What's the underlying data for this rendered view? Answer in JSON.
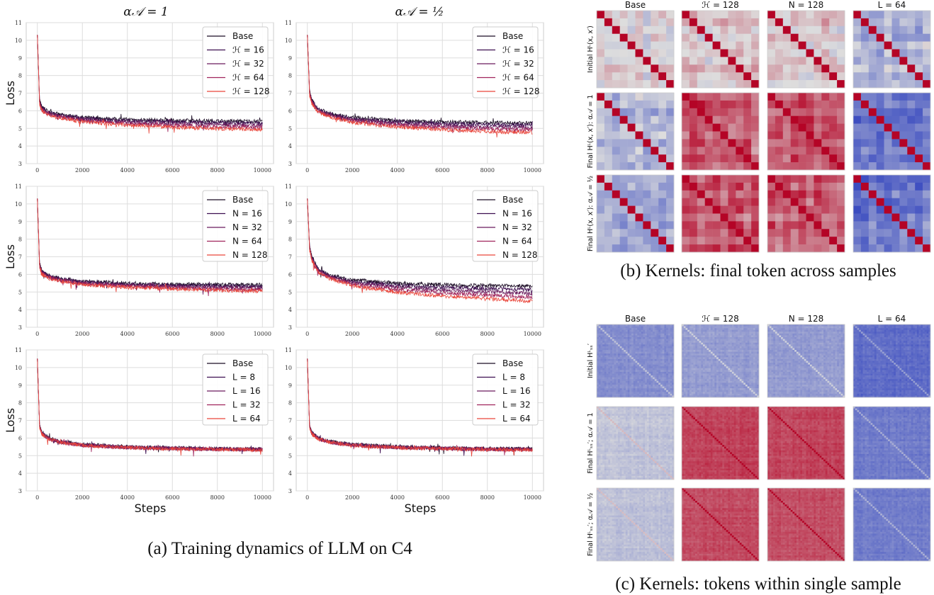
{
  "figure_a": {
    "caption": "(a)  Training dynamics of LLM on C4",
    "column_titles": [
      "α𝒜 = 1",
      "α𝒜 = ½"
    ],
    "ylabel": "Loss",
    "xlabel": "Steps"
  },
  "chart_data": [
    {
      "type": "line",
      "row": 0,
      "col": 0,
      "ylabel": "Loss",
      "xlim": [
        0,
        10000
      ],
      "ylim": [
        3,
        11
      ],
      "grid": true,
      "legend": "top-right",
      "xticks": [
        0,
        2000,
        4000,
        6000,
        8000,
        10000
      ],
      "yticks": [
        3,
        4,
        5,
        6,
        7,
        8,
        9,
        10,
        11
      ],
      "x": [
        0,
        100,
        200,
        500,
        1000,
        2000,
        4000,
        6000,
        8000,
        10000
      ],
      "series": [
        {
          "name": "Base",
          "color": "#1b0c24",
          "values": [
            10.3,
            6.6,
            6.2,
            5.95,
            5.78,
            5.62,
            5.5,
            5.45,
            5.42,
            5.4
          ]
        },
        {
          "name": "ℋ = 16",
          "color": "#3d0f50",
          "values": [
            10.3,
            6.55,
            6.15,
            5.9,
            5.73,
            5.56,
            5.43,
            5.37,
            5.33,
            5.3
          ]
        },
        {
          "name": "ℋ = 32",
          "color": "#6a1b5e",
          "values": [
            10.3,
            6.5,
            6.1,
            5.85,
            5.68,
            5.5,
            5.35,
            5.27,
            5.22,
            5.18
          ]
        },
        {
          "name": "ℋ = 64",
          "color": "#a0245c",
          "values": [
            10.3,
            6.45,
            6.05,
            5.8,
            5.63,
            5.44,
            5.27,
            5.17,
            5.1,
            5.05
          ]
        },
        {
          "name": "ℋ = 128",
          "color": "#e9463b",
          "values": [
            10.3,
            6.4,
            6.0,
            5.75,
            5.58,
            5.38,
            5.18,
            5.07,
            4.98,
            4.92
          ]
        }
      ]
    },
    {
      "type": "line",
      "row": 0,
      "col": 1,
      "xlim": [
        0,
        10000
      ],
      "ylim": [
        3,
        11
      ],
      "grid": true,
      "legend": "top-right",
      "xticks": [
        0,
        2000,
        4000,
        6000,
        8000,
        10000
      ],
      "yticks": [
        3,
        4,
        5,
        6,
        7,
        8,
        9,
        10,
        11
      ],
      "x": [
        0,
        100,
        200,
        500,
        1000,
        2000,
        4000,
        6000,
        8000,
        10000
      ],
      "series": [
        {
          "name": "Base",
          "color": "#1b0c24",
          "values": [
            10.3,
            7.1,
            6.6,
            6.1,
            5.85,
            5.62,
            5.45,
            5.38,
            5.33,
            5.3
          ]
        },
        {
          "name": "ℋ = 16",
          "color": "#3d0f50",
          "values": [
            10.3,
            7.05,
            6.55,
            6.05,
            5.8,
            5.55,
            5.36,
            5.27,
            5.21,
            5.17
          ]
        },
        {
          "name": "ℋ = 32",
          "color": "#6a1b5e",
          "values": [
            10.3,
            7.0,
            6.5,
            6.0,
            5.75,
            5.48,
            5.27,
            5.16,
            5.09,
            5.04
          ]
        },
        {
          "name": "ℋ = 64",
          "color": "#a0245c",
          "values": [
            10.3,
            6.95,
            6.45,
            5.95,
            5.7,
            5.41,
            5.18,
            5.05,
            4.97,
            4.91
          ]
        },
        {
          "name": "ℋ = 128",
          "color": "#e9463b",
          "values": [
            10.3,
            6.9,
            6.4,
            5.9,
            5.65,
            5.34,
            5.08,
            4.93,
            4.83,
            4.76
          ]
        }
      ]
    },
    {
      "type": "line",
      "row": 1,
      "col": 0,
      "ylabel": "Loss",
      "xlim": [
        0,
        10000
      ],
      "ylim": [
        3,
        11
      ],
      "grid": true,
      "legend": "top-right",
      "xticks": [
        0,
        2000,
        4000,
        6000,
        8000,
        10000
      ],
      "yticks": [
        3,
        4,
        5,
        6,
        7,
        8,
        9,
        10,
        11
      ],
      "x": [
        0,
        100,
        200,
        500,
        1000,
        2000,
        4000,
        6000,
        8000,
        10000
      ],
      "series": [
        {
          "name": "Base",
          "color": "#1b0c24",
          "values": [
            10.3,
            6.6,
            6.2,
            5.95,
            5.78,
            5.62,
            5.5,
            5.45,
            5.42,
            5.4
          ]
        },
        {
          "name": "N = 16",
          "color": "#3d0f50",
          "values": [
            10.3,
            6.55,
            6.15,
            5.9,
            5.74,
            5.57,
            5.44,
            5.38,
            5.34,
            5.31
          ]
        },
        {
          "name": "N = 32",
          "color": "#6a1b5e",
          "values": [
            10.3,
            6.5,
            6.1,
            5.86,
            5.7,
            5.52,
            5.38,
            5.31,
            5.26,
            5.22
          ]
        },
        {
          "name": "N = 64",
          "color": "#a0245c",
          "values": [
            10.3,
            6.45,
            6.05,
            5.82,
            5.66,
            5.47,
            5.32,
            5.24,
            5.18,
            5.13
          ]
        },
        {
          "name": "N = 128",
          "color": "#e9463b",
          "values": [
            10.3,
            6.4,
            6.0,
            5.78,
            5.62,
            5.42,
            5.26,
            5.17,
            5.1,
            5.04
          ]
        }
      ]
    },
    {
      "type": "line",
      "row": 1,
      "col": 1,
      "xlim": [
        0,
        10000
      ],
      "ylim": [
        3,
        11
      ],
      "grid": true,
      "legend": "top-right",
      "xticks": [
        0,
        2000,
        4000,
        6000,
        8000,
        10000
      ],
      "yticks": [
        3,
        4,
        5,
        6,
        7,
        8,
        9,
        10,
        11
      ],
      "x": [
        0,
        100,
        200,
        500,
        1000,
        2000,
        4000,
        6000,
        8000,
        10000
      ],
      "series": [
        {
          "name": "Base",
          "color": "#1b0c24",
          "values": [
            10.3,
            7.6,
            7.0,
            6.3,
            5.95,
            5.68,
            5.5,
            5.42,
            5.36,
            5.32
          ]
        },
        {
          "name": "N = 16",
          "color": "#3d0f50",
          "values": [
            10.3,
            7.55,
            6.95,
            6.25,
            5.9,
            5.6,
            5.38,
            5.27,
            5.19,
            5.13
          ]
        },
        {
          "name": "N = 32",
          "color": "#6a1b5e",
          "values": [
            10.3,
            7.5,
            6.9,
            6.2,
            5.85,
            5.52,
            5.25,
            5.11,
            5.01,
            4.93
          ]
        },
        {
          "name": "N = 64",
          "color": "#a0245c",
          "values": [
            10.3,
            7.45,
            6.85,
            6.15,
            5.8,
            5.44,
            5.12,
            4.95,
            4.83,
            4.72
          ]
        },
        {
          "name": "N = 128",
          "color": "#e9463b",
          "values": [
            10.3,
            7.4,
            6.8,
            6.1,
            5.75,
            5.36,
            4.98,
            4.77,
            4.62,
            4.48
          ]
        }
      ]
    },
    {
      "type": "line",
      "row": 2,
      "col": 0,
      "ylabel": "Loss",
      "xlabel": "Steps",
      "xlim": [
        0,
        10000
      ],
      "ylim": [
        3,
        11
      ],
      "grid": true,
      "legend": "top-right",
      "xticks": [
        0,
        2000,
        4000,
        6000,
        8000,
        10000
      ],
      "yticks": [
        3,
        4,
        5,
        6,
        7,
        8,
        9,
        10,
        11
      ],
      "x": [
        0,
        100,
        200,
        500,
        1000,
        2000,
        4000,
        6000,
        8000,
        10000
      ],
      "series": [
        {
          "name": "Base",
          "color": "#1b0c24",
          "values": [
            10.5,
            6.7,
            6.3,
            6.0,
            5.8,
            5.63,
            5.5,
            5.44,
            5.4,
            5.38
          ]
        },
        {
          "name": "L = 8",
          "color": "#3d0f50",
          "values": [
            10.5,
            6.68,
            6.28,
            5.98,
            5.78,
            5.61,
            5.48,
            5.42,
            5.38,
            5.36
          ]
        },
        {
          "name": "L = 16",
          "color": "#6a1b5e",
          "values": [
            10.5,
            6.66,
            6.26,
            5.96,
            5.77,
            5.6,
            5.47,
            5.41,
            5.37,
            5.35
          ]
        },
        {
          "name": "L = 32",
          "color": "#a0245c",
          "values": [
            10.5,
            6.64,
            6.24,
            5.95,
            5.76,
            5.59,
            5.46,
            5.4,
            5.36,
            5.34
          ]
        },
        {
          "name": "L = 64",
          "color": "#e9463b",
          "values": [
            10.5,
            6.62,
            6.22,
            5.94,
            5.75,
            5.58,
            5.45,
            5.39,
            5.35,
            5.33
          ]
        }
      ]
    },
    {
      "type": "line",
      "row": 2,
      "col": 1,
      "xlabel": "Steps",
      "xlim": [
        0,
        10000
      ],
      "ylim": [
        3,
        11
      ],
      "grid": true,
      "legend": "top-right",
      "xticks": [
        0,
        2000,
        4000,
        6000,
        8000,
        10000
      ],
      "yticks": [
        3,
        4,
        5,
        6,
        7,
        8,
        9,
        10,
        11
      ],
      "x": [
        0,
        100,
        200,
        500,
        1000,
        2000,
        4000,
        6000,
        8000,
        10000
      ],
      "series": [
        {
          "name": "Base",
          "color": "#1b0c24",
          "values": [
            10.5,
            6.7,
            6.3,
            6.0,
            5.8,
            5.63,
            5.5,
            5.44,
            5.4,
            5.38
          ]
        },
        {
          "name": "L = 8",
          "color": "#3d0f50",
          "values": [
            10.5,
            6.68,
            6.28,
            5.98,
            5.78,
            5.61,
            5.48,
            5.42,
            5.38,
            5.36
          ]
        },
        {
          "name": "L = 16",
          "color": "#6a1b5e",
          "values": [
            10.5,
            6.66,
            6.26,
            5.96,
            5.77,
            5.6,
            5.47,
            5.41,
            5.37,
            5.35
          ]
        },
        {
          "name": "L = 32",
          "color": "#a0245c",
          "values": [
            10.5,
            6.64,
            6.24,
            5.95,
            5.76,
            5.59,
            5.46,
            5.4,
            5.36,
            5.34
          ]
        },
        {
          "name": "L = 64",
          "color": "#e9463b",
          "values": [
            10.5,
            6.62,
            6.22,
            5.94,
            5.75,
            5.58,
            5.45,
            5.39,
            5.35,
            5.33
          ]
        }
      ]
    }
  ],
  "figure_b": {
    "caption": "(b)  Kernels: final token across samples",
    "column_titles": [
      "Base",
      "ℋ = 128",
      "N = 128",
      "L = 64"
    ],
    "row_labels": [
      "Initial Hᴸ(x, x′)",
      "Final Hᴸ(x, x′): α𝒜 = 1",
      "Final Hᴸ(x, x′): α𝒜 = ½"
    ],
    "type": "heatmap",
    "colormap": "coolwarm",
    "grid_size": 10,
    "mean_off_diagonal": [
      [
        0.0,
        0.12,
        0.1,
        -0.25
      ],
      [
        -0.3,
        0.6,
        0.52,
        -0.75
      ],
      [
        -0.3,
        0.58,
        0.58,
        -0.72
      ]
    ]
  },
  "figure_c": {
    "caption": "(c)  Kernels: tokens within single sample",
    "column_titles": [
      "Base",
      "ℋ = 128",
      "N = 128",
      "L = 64"
    ],
    "row_labels": [
      "Initial Hᴸₛₛ′",
      "Final Hᴸₛₛ′; α𝒜 = 1",
      "Final Hᴸₛₛ′; α𝒜 = ½"
    ],
    "type": "heatmap",
    "colormap": "coolwarm",
    "mean_off_diagonal": [
      [
        -0.55,
        -0.45,
        -0.45,
        -0.78
      ],
      [
        -0.18,
        0.72,
        0.7,
        -0.68
      ],
      [
        -0.2,
        0.68,
        0.66,
        -0.66
      ]
    ]
  }
}
